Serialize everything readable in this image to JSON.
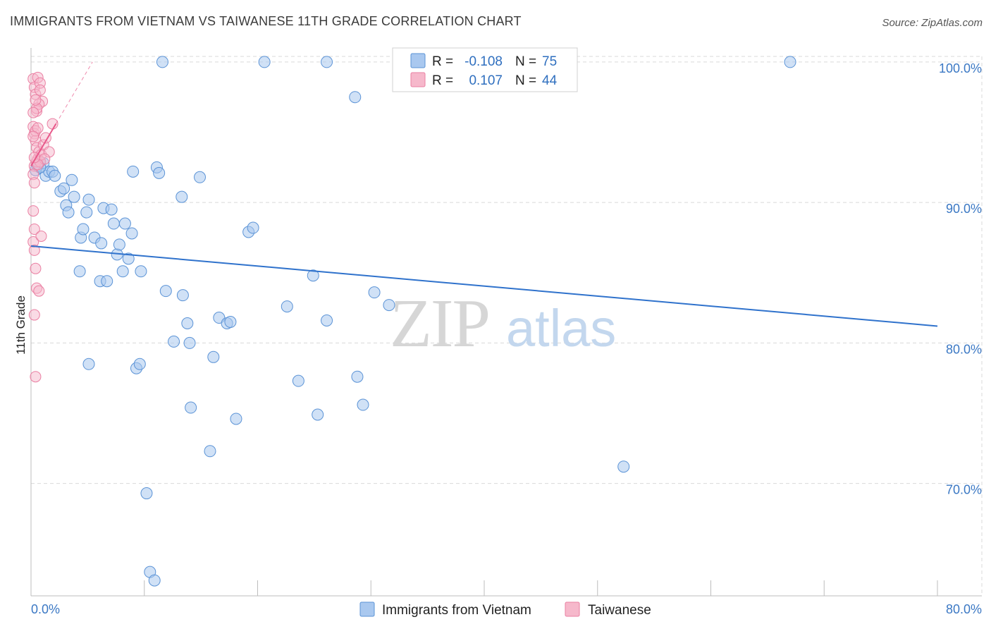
{
  "title": "IMMIGRANTS FROM VIETNAM VS TAIWANESE 11TH GRADE CORRELATION CHART",
  "source": "Source: ZipAtlas.com",
  "watermark": {
    "part1": "ZIP",
    "part2": "atlas"
  },
  "colors": {
    "blue_fill": "#a9c8ef",
    "blue_stroke": "#5b93d6",
    "blue_line": "#2f72cc",
    "pink_fill": "#f6b8cb",
    "pink_stroke": "#ea7fa2",
    "pink_line": "#e8588a",
    "grid": "#d9d9d9",
    "tick_label": "#3b78c4"
  },
  "legend_box": {
    "rows": [
      {
        "r_label": "R =",
        "r_value": "-0.108",
        "n_label": "N =",
        "n_value": "75"
      },
      {
        "r_label": "R =",
        "r_value": "0.107",
        "n_label": "N =",
        "n_value": "44"
      }
    ]
  },
  "bottom_legend": [
    {
      "label": "Immigrants from Vietnam"
    },
    {
      "label": "Taiwanese"
    }
  ],
  "chart_data": {
    "type": "scatter",
    "xlabel": "",
    "ylabel": "11th Grade",
    "xlim": [
      0,
      80
    ],
    "ylim": [
      62,
      101
    ],
    "x_tick_labels": [
      {
        "value": 0,
        "label": "0.0%"
      },
      {
        "value": 80,
        "label": "80.0%"
      }
    ],
    "y_tick_labels": [
      {
        "value": 100,
        "label": "100.0%"
      },
      {
        "value": 90,
        "label": "90.0%"
      },
      {
        "value": 80,
        "label": "80.0%"
      },
      {
        "value": 70,
        "label": "70.0%"
      }
    ],
    "grid": true,
    "legend_position": "top-center",
    "series": [
      {
        "name": "Immigrants from Vietnam",
        "color": "#a9c8ef",
        "trend": {
          "x": [
            0,
            80
          ],
          "y": [
            86.9,
            81.2
          ]
        },
        "points": [
          [
            0.4,
            92.3
          ],
          [
            0.6,
            92.6
          ],
          [
            0.8,
            92.9
          ],
          [
            1.1,
            92.8
          ],
          [
            1.3,
            91.9
          ],
          [
            1.6,
            92.2
          ],
          [
            1.9,
            92.2
          ],
          [
            2.1,
            91.9
          ],
          [
            2.6,
            90.8
          ],
          [
            2.9,
            91.0
          ],
          [
            3.1,
            89.8
          ],
          [
            3.3,
            89.3
          ],
          [
            3.8,
            90.4
          ],
          [
            4.3,
            85.1
          ],
          [
            4.4,
            87.5
          ],
          [
            4.6,
            88.1
          ],
          [
            4.9,
            89.3
          ],
          [
            5.1,
            90.2
          ],
          [
            5.6,
            87.5
          ],
          [
            6.1,
            84.4
          ],
          [
            6.2,
            87.1
          ],
          [
            6.4,
            89.6
          ],
          [
            6.7,
            84.4
          ],
          [
            7.1,
            89.5
          ],
          [
            7.3,
            88.5
          ],
          [
            7.6,
            86.3
          ],
          [
            7.8,
            87.0
          ],
          [
            8.1,
            85.1
          ],
          [
            8.3,
            88.5
          ],
          [
            8.6,
            86.0
          ],
          [
            8.9,
            87.8
          ],
          [
            9.0,
            92.2
          ],
          [
            9.3,
            78.2
          ],
          [
            9.6,
            78.5
          ],
          [
            9.7,
            85.1
          ],
          [
            10.2,
            69.3
          ],
          [
            10.5,
            63.7
          ],
          [
            10.9,
            63.1
          ],
          [
            11.1,
            92.5
          ],
          [
            11.3,
            92.1
          ],
          [
            11.6,
            100.0
          ],
          [
            11.9,
            83.7
          ],
          [
            12.6,
            80.1
          ],
          [
            13.3,
            90.4
          ],
          [
            13.4,
            83.4
          ],
          [
            13.8,
            81.4
          ],
          [
            14.0,
            80.0
          ],
          [
            14.1,
            75.4
          ],
          [
            14.9,
            91.8
          ],
          [
            15.8,
            72.3
          ],
          [
            16.1,
            79.0
          ],
          [
            16.6,
            81.8
          ],
          [
            17.3,
            81.4
          ],
          [
            17.6,
            81.5
          ],
          [
            18.1,
            74.6
          ],
          [
            19.2,
            87.9
          ],
          [
            19.6,
            88.2
          ],
          [
            20.6,
            100.0
          ],
          [
            22.6,
            82.6
          ],
          [
            23.6,
            77.3
          ],
          [
            24.9,
            84.8
          ],
          [
            25.3,
            74.9
          ],
          [
            26.1,
            81.6
          ],
          [
            26.1,
            100.0
          ],
          [
            28.6,
            97.5
          ],
          [
            28.8,
            77.6
          ],
          [
            29.3,
            75.6
          ],
          [
            30.3,
            83.6
          ],
          [
            31.6,
            82.7
          ],
          [
            43.2,
            100.0
          ],
          [
            52.3,
            71.2
          ],
          [
            67.0,
            100.0
          ],
          [
            5.1,
            78.5
          ],
          [
            0.8,
            92.5
          ],
          [
            3.6,
            91.6
          ]
        ]
      },
      {
        "name": "Taiwanese",
        "color": "#f6b8cb",
        "trend": {
          "x": [
            0,
            2.2
          ],
          "y": [
            92.6,
            95.6
          ]
        },
        "points": [
          [
            0.2,
            98.8
          ],
          [
            0.3,
            98.2
          ],
          [
            0.4,
            97.7
          ],
          [
            0.5,
            96.5
          ],
          [
            0.2,
            95.4
          ],
          [
            0.3,
            94.9
          ],
          [
            0.4,
            94.4
          ],
          [
            0.5,
            93.9
          ],
          [
            0.6,
            93.1
          ],
          [
            0.3,
            92.6
          ],
          [
            0.5,
            92.9
          ],
          [
            0.7,
            93.6
          ],
          [
            0.8,
            92.9
          ],
          [
            0.9,
            93.4
          ],
          [
            1.1,
            94.1
          ],
          [
            1.3,
            94.6
          ],
          [
            1.6,
            93.6
          ],
          [
            1.9,
            95.6
          ],
          [
            0.2,
            92.0
          ],
          [
            0.3,
            91.4
          ],
          [
            0.2,
            89.4
          ],
          [
            0.3,
            88.1
          ],
          [
            0.2,
            87.2
          ],
          [
            0.3,
            86.6
          ],
          [
            0.4,
            85.3
          ],
          [
            0.5,
            83.9
          ],
          [
            0.7,
            83.7
          ],
          [
            0.3,
            82.0
          ],
          [
            0.4,
            77.6
          ],
          [
            0.9,
            87.6
          ],
          [
            0.6,
            98.9
          ],
          [
            0.8,
            98.5
          ],
          [
            1.0,
            97.2
          ],
          [
            0.7,
            97.0
          ],
          [
            0.5,
            96.7
          ],
          [
            0.4,
            95.1
          ],
          [
            0.6,
            95.3
          ],
          [
            1.2,
            93.1
          ],
          [
            0.2,
            94.7
          ],
          [
            0.8,
            98.0
          ],
          [
            0.6,
            92.7
          ],
          [
            0.4,
            97.3
          ],
          [
            0.2,
            96.4
          ],
          [
            0.3,
            93.2
          ]
        ]
      }
    ]
  }
}
